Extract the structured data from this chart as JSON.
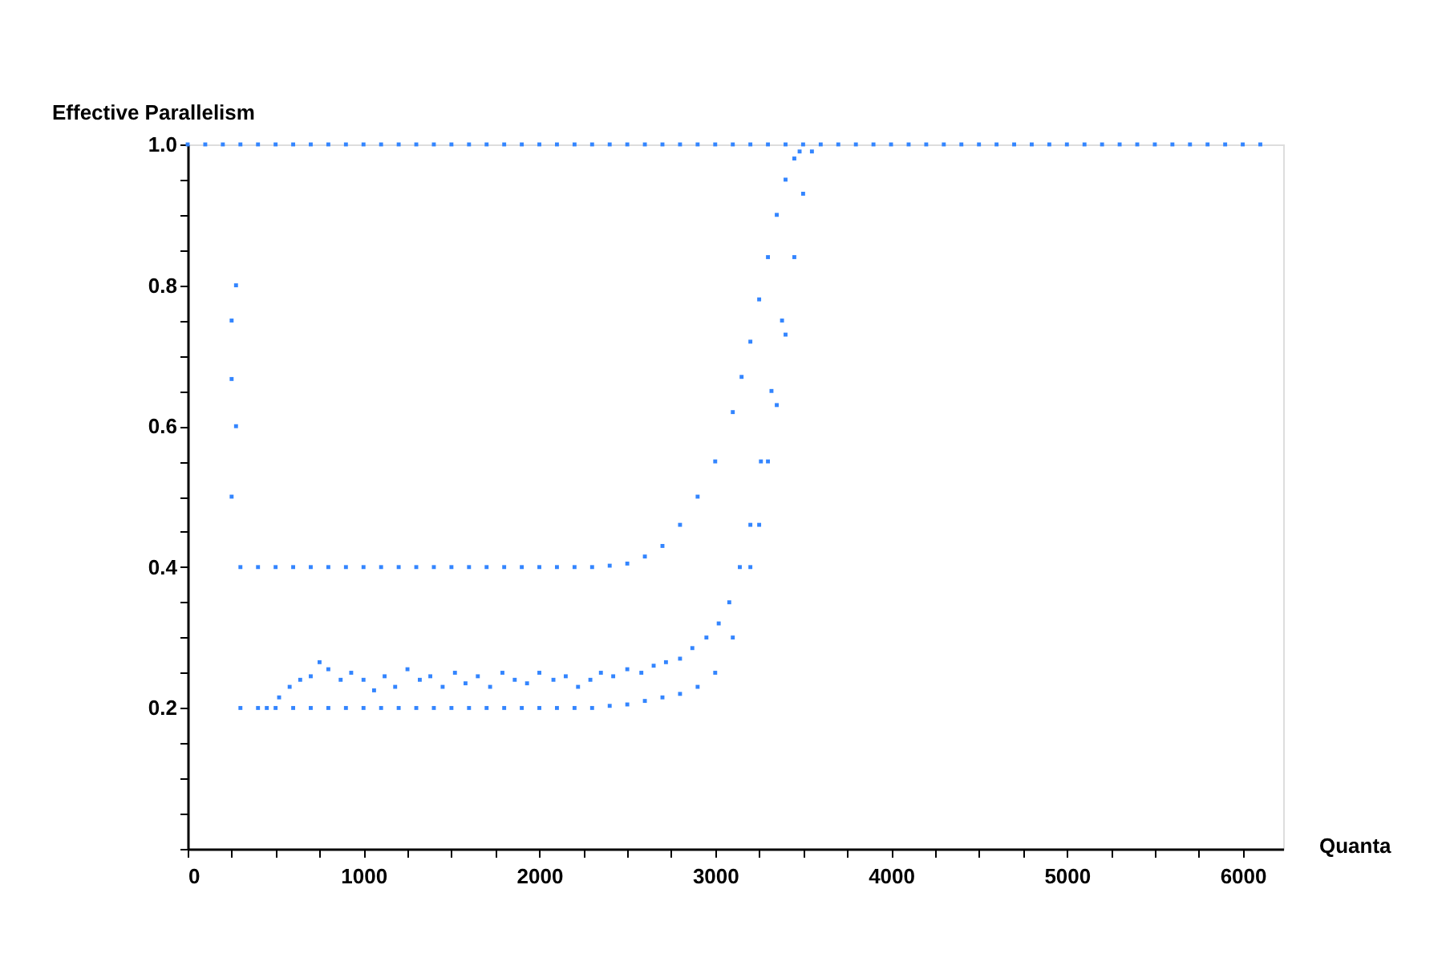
{
  "chart_data": {
    "type": "scatter",
    "xlabel": "Quanta",
    "ylabel": "Effective Parallelism",
    "xlim": [
      0,
      6230
    ],
    "ylim": [
      0,
      1.0
    ],
    "xticks": [
      0,
      {
        "value": 250,
        "label": null
      },
      {
        "value": 500,
        "label": null
      },
      {
        "value": 750,
        "label": null
      },
      1000,
      {
        "value": 1250,
        "label": null
      },
      {
        "value": 1500,
        "label": null
      },
      {
        "value": 1750,
        "label": null
      },
      2000,
      {
        "value": 2250,
        "label": null
      },
      {
        "value": 2500,
        "label": null
      },
      {
        "value": 2750,
        "label": null
      },
      3000,
      {
        "value": 3250,
        "label": null
      },
      {
        "value": 3500,
        "label": null
      },
      {
        "value": 3750,
        "label": null
      },
      4000,
      {
        "value": 4250,
        "label": null
      },
      {
        "value": 4500,
        "label": null
      },
      {
        "value": 4750,
        "label": null
      },
      5000,
      {
        "value": 5250,
        "label": null
      },
      {
        "value": 5500,
        "label": null
      },
      {
        "value": 5750,
        "label": null
      },
      6000
    ],
    "yticks": [
      {
        "value": 0,
        "label": null
      },
      {
        "value": 0.05,
        "label": null
      },
      {
        "value": 0.1,
        "label": null
      },
      {
        "value": 0.15,
        "label": null
      },
      0.2,
      {
        "value": 0.25,
        "label": null
      },
      {
        "value": 0.3,
        "label": null
      },
      {
        "value": 0.35,
        "label": null
      },
      0.4,
      {
        "value": 0.45,
        "label": null
      },
      {
        "value": 0.5,
        "label": null
      },
      {
        "value": 0.55,
        "label": null
      },
      0.6,
      {
        "value": 0.65,
        "label": null
      },
      {
        "value": 0.7,
        "label": null
      },
      {
        "value": 0.75,
        "label": null
      },
      0.8,
      {
        "value": 0.85,
        "label": null
      },
      {
        "value": 0.9,
        "label": null
      },
      {
        "value": 0.95,
        "label": null
      },
      {
        "value": 1.0,
        "label": "1.0"
      }
    ],
    "grid": false,
    "marker": "square",
    "series": [
      {
        "color": "#3385ff",
        "x": [
          0,
          100,
          200,
          300,
          400,
          500,
          600,
          700,
          800,
          900,
          1000,
          1100,
          1200,
          1300,
          1400,
          1500,
          1600,
          1700,
          1800,
          1900,
          2000,
          2100,
          2200,
          2300,
          2400,
          2500,
          2600,
          2700,
          2800,
          2900,
          3000,
          3100,
          3200,
          3300,
          3400,
          3500,
          3600,
          3700,
          3800,
          3900,
          4000,
          4100,
          4200,
          4300,
          4400,
          4500,
          4600,
          4700,
          4800,
          4900,
          5000,
          5100,
          5200,
          5300,
          5400,
          5500,
          5600,
          5700,
          5800,
          5900,
          6000,
          6100
        ],
        "values": [
          1,
          1,
          1,
          1,
          1,
          1,
          1,
          1,
          1,
          1,
          1,
          1,
          1,
          1,
          1,
          1,
          1,
          1,
          1,
          1,
          1,
          1,
          1,
          1,
          1,
          1,
          1,
          1,
          1,
          1,
          1,
          1,
          1,
          1,
          1,
          1,
          1,
          1,
          1,
          1,
          1,
          1,
          1,
          1,
          1,
          1,
          1,
          1,
          1,
          1,
          1,
          1,
          1,
          1,
          1,
          1,
          1,
          1,
          1,
          1,
          1,
          1
        ]
      },
      {
        "color": "#3385ff",
        "x": [
          250,
          250,
          250,
          275,
          275
        ],
        "values": [
          0.75,
          0.667,
          0.5,
          0.8,
          0.6
        ]
      },
      {
        "color": "#3385ff",
        "x": [
          300,
          400,
          500,
          600,
          700,
          800,
          900,
          1000,
          1100,
          1200,
          1300,
          1400,
          1500,
          1600,
          1700,
          1800,
          1900,
          2000,
          2100,
          2200,
          2300,
          2400,
          2500,
          2600,
          2700,
          2800,
          2900,
          3000,
          3100,
          3150,
          3200,
          3250,
          3300,
          3350,
          3400,
          3450,
          3480
        ],
        "values": [
          0.4,
          0.4,
          0.4,
          0.4,
          0.4,
          0.4,
          0.4,
          0.4,
          0.4,
          0.4,
          0.4,
          0.4,
          0.4,
          0.4,
          0.4,
          0.4,
          0.4,
          0.4,
          0.4,
          0.4,
          0.4,
          0.402,
          0.405,
          0.415,
          0.43,
          0.46,
          0.5,
          0.55,
          0.62,
          0.67,
          0.72,
          0.78,
          0.84,
          0.9,
          0.95,
          0.98,
          0.99
        ]
      },
      {
        "color": "#3385ff",
        "x": [
          300,
          400,
          500,
          600,
          700,
          800,
          900,
          1000,
          1100,
          1200,
          1300,
          1400,
          1500,
          1600,
          1700,
          1800,
          1900,
          2000,
          2100,
          2200,
          2300,
          2400,
          2500,
          2600,
          2700,
          2800,
          2900,
          3000,
          3100,
          3200,
          3250,
          3300,
          3350,
          3400,
          3450,
          3500,
          3550
        ],
        "values": [
          0.2,
          0.2,
          0.2,
          0.2,
          0.2,
          0.2,
          0.2,
          0.2,
          0.2,
          0.2,
          0.2,
          0.2,
          0.2,
          0.2,
          0.2,
          0.2,
          0.2,
          0.2,
          0.2,
          0.2,
          0.2,
          0.203,
          0.205,
          0.21,
          0.215,
          0.22,
          0.23,
          0.25,
          0.3,
          0.4,
          0.46,
          0.55,
          0.63,
          0.73,
          0.84,
          0.93,
          0.99
        ]
      },
      {
        "color": "#3385ff",
        "x": [
          450,
          520,
          580,
          640,
          700,
          750,
          800,
          870,
          930,
          1000,
          1060,
          1120,
          1180,
          1250,
          1320,
          1380,
          1450,
          1520,
          1580,
          1650,
          1720,
          1790,
          1860,
          1930,
          2000,
          2080,
          2150,
          2220,
          2290,
          2350,
          2420,
          2500,
          2580,
          2650,
          2720,
          2800,
          2870,
          2950,
          3020,
          3080,
          3140,
          3200,
          3260,
          3320,
          3380
        ],
        "values": [
          0.2,
          0.215,
          0.23,
          0.24,
          0.245,
          0.265,
          0.255,
          0.24,
          0.25,
          0.24,
          0.225,
          0.245,
          0.23,
          0.255,
          0.24,
          0.245,
          0.23,
          0.25,
          0.235,
          0.245,
          0.23,
          0.25,
          0.24,
          0.235,
          0.25,
          0.24,
          0.245,
          0.23,
          0.24,
          0.25,
          0.245,
          0.255,
          0.25,
          0.26,
          0.265,
          0.27,
          0.285,
          0.3,
          0.32,
          0.35,
          0.4,
          0.46,
          0.55,
          0.65,
          0.75
        ]
      }
    ]
  }
}
